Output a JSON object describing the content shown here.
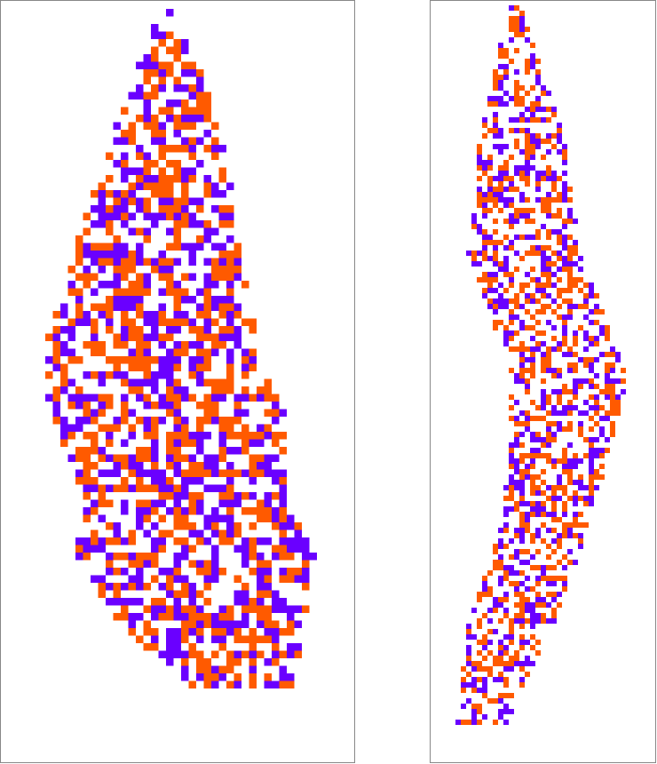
{
  "panels": [
    {
      "colors": [
        "#ff5a00",
        "#6a00ff"
      ]
    },
    {
      "colors": [
        "#ff5a00",
        "#6a00ff"
      ]
    }
  ]
}
